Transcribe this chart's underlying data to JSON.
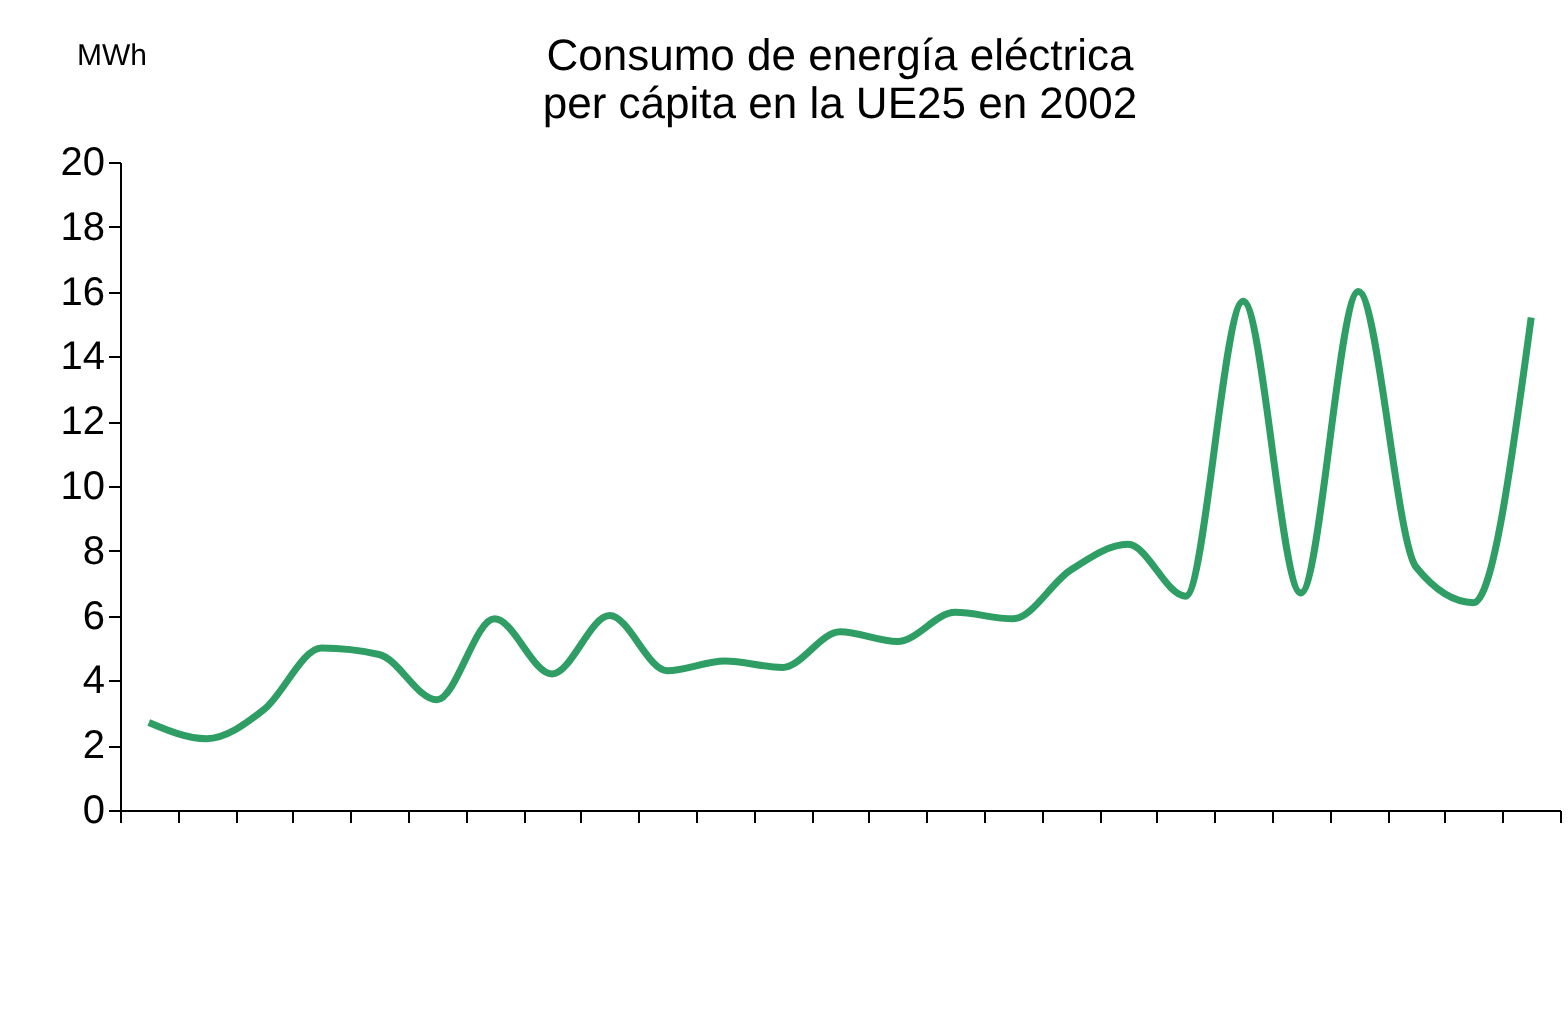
{
  "chart_data": {
    "type": "line",
    "title": [
      "Consumo de energía eléctrica",
      "per cápita en la UE25 en 2002"
    ],
    "ylabel": "MWh",
    "categories": [
      null,
      null,
      null,
      null,
      null,
      null,
      null,
      null,
      null,
      null,
      null,
      null,
      null,
      null,
      null,
      null,
      null,
      null,
      null,
      null,
      null,
      null,
      null,
      null,
      null
    ],
    "series": [
      {
        "color": "#2e9e64",
        "values": [
          2.7,
          2.2,
          3.1,
          5.0,
          4.8,
          3.4,
          5.9,
          4.2,
          6.0,
          4.3,
          4.6,
          4.4,
          5.5,
          5.2,
          6.1,
          5.9,
          7.4,
          8.2,
          6.6,
          15.7,
          6.7,
          16.0,
          7.5,
          6.4,
          15.2
        ]
      }
    ],
    "ylim": [
      0,
      20
    ],
    "yticks": [
      0,
      2,
      4,
      6,
      8,
      10,
      12,
      14,
      16,
      18,
      20
    ],
    "grid": false,
    "marker": "none",
    "line_style": "solid",
    "tick_labels": "y"
  }
}
